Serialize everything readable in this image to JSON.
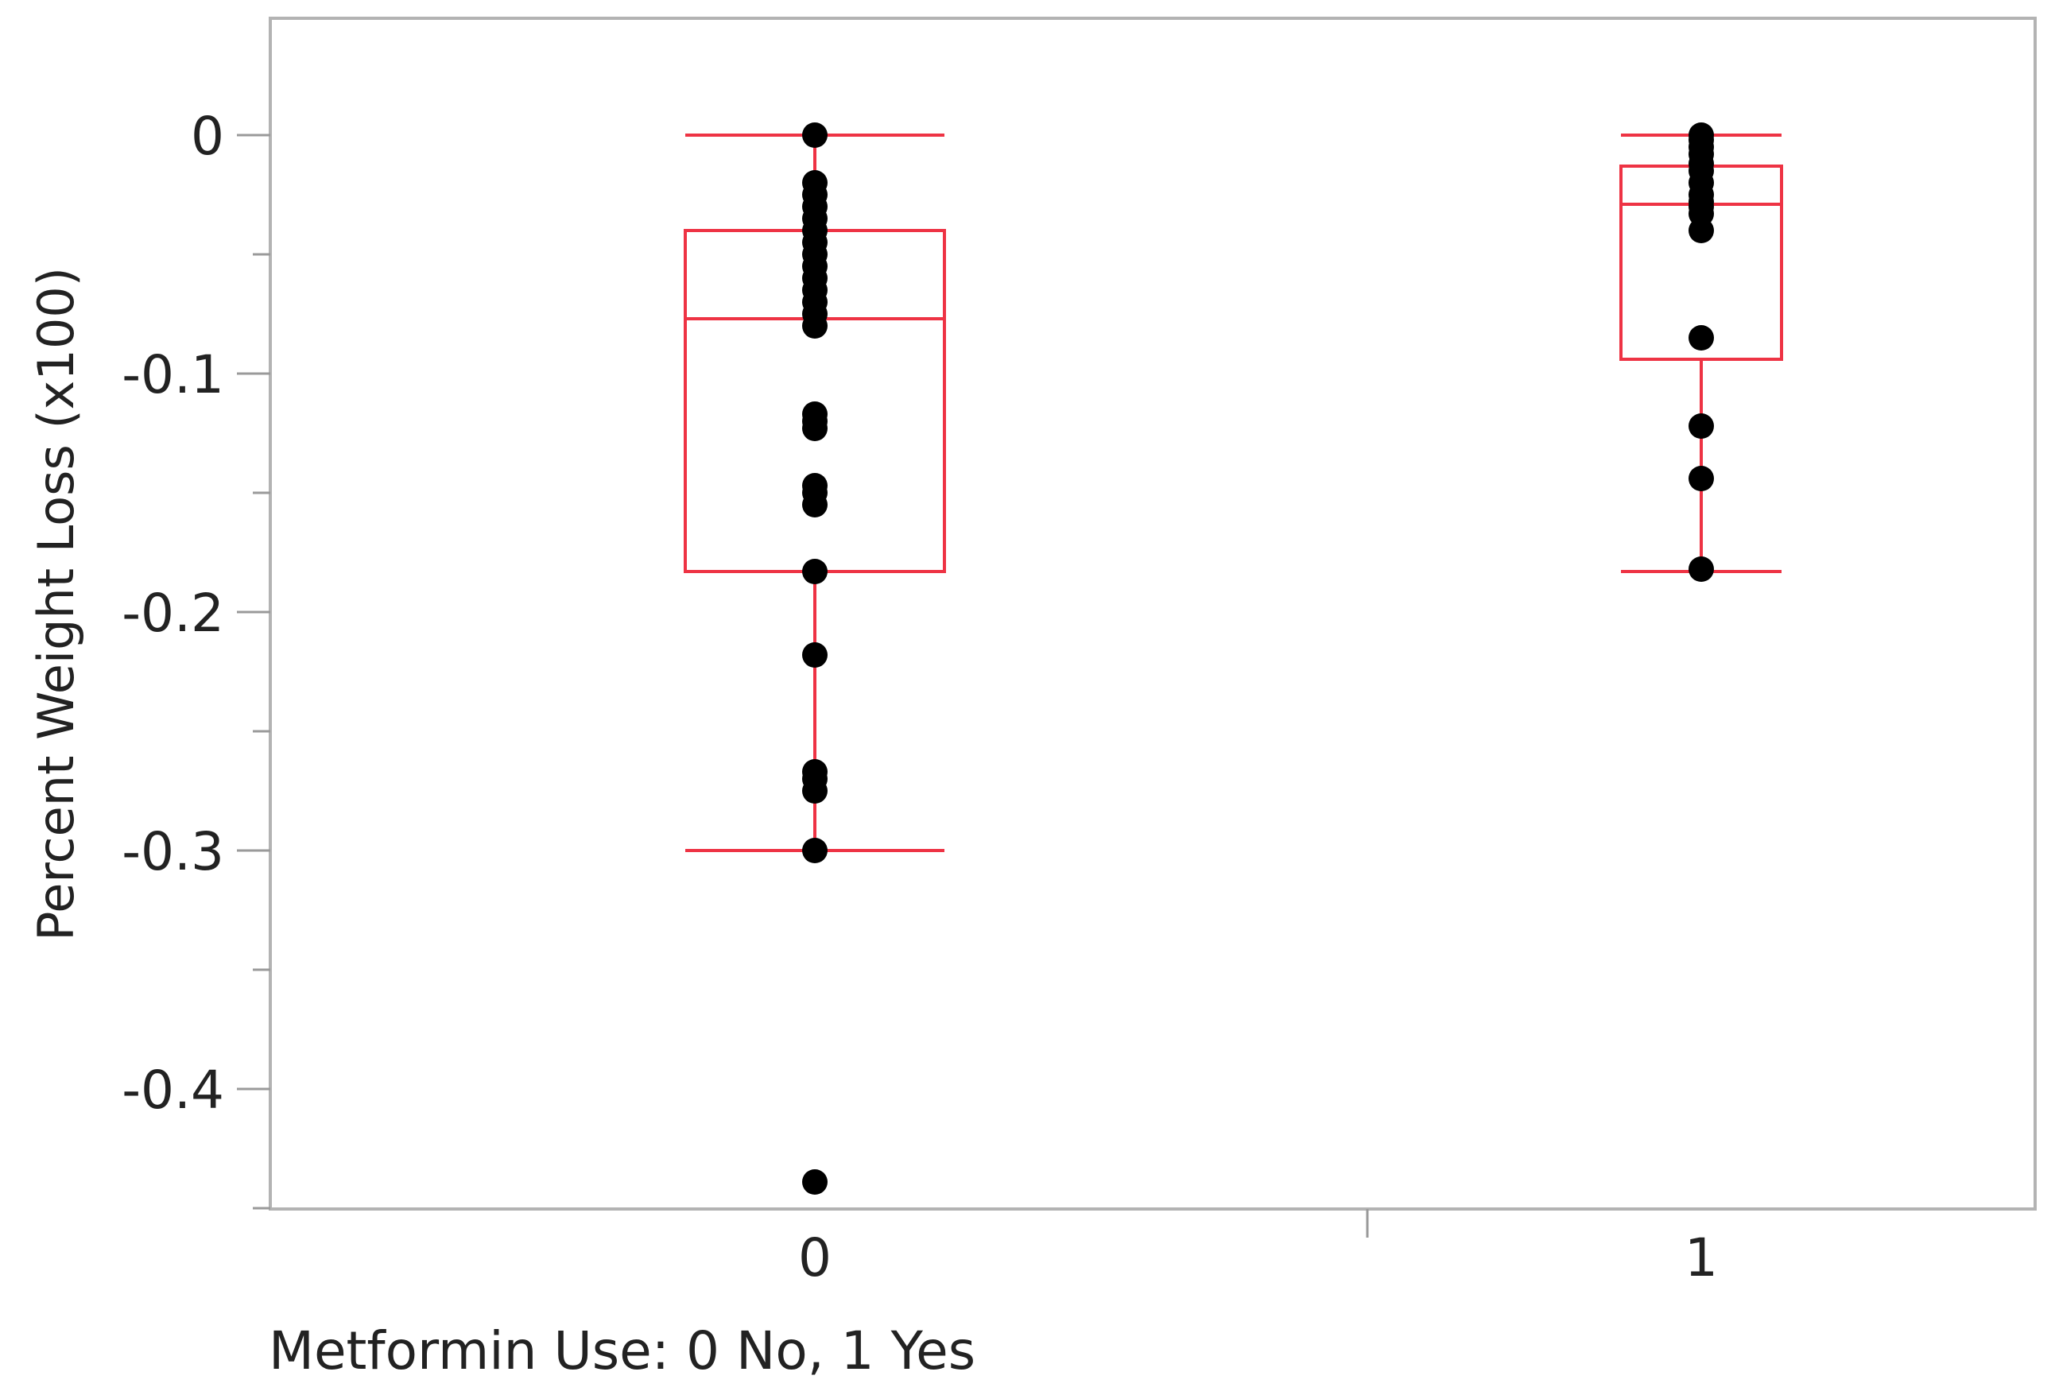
{
  "chart_data": {
    "type": "box",
    "xlabel": "Metformin Use: 0 No, 1 Yes",
    "ylabel": "Percent Weight Loss (x100)",
    "categories": [
      "0",
      "1"
    ],
    "ylim": [
      -0.45,
      0.05
    ],
    "y_ticks": [
      0,
      -0.1,
      -0.2,
      -0.3,
      -0.4
    ],
    "y_tick_labels": [
      "0",
      "-0.1",
      "-0.2",
      "-0.3",
      "-0.4"
    ],
    "grid": false,
    "box_color": "#ee3344",
    "point_color": "#000000",
    "boxes": [
      {
        "category": "0",
        "whisker_high": 0.0,
        "q3": -0.04,
        "median": -0.077,
        "q1": -0.183,
        "whisker_low": -0.3,
        "points": [
          0.0,
          -0.02,
          -0.025,
          -0.03,
          -0.035,
          -0.04,
          -0.045,
          -0.05,
          -0.055,
          -0.06,
          -0.065,
          -0.07,
          -0.075,
          -0.08,
          -0.117,
          -0.12,
          -0.123,
          -0.147,
          -0.15,
          -0.155,
          -0.183,
          -0.218,
          -0.267,
          -0.27,
          -0.275,
          -0.3,
          -0.439
        ]
      },
      {
        "category": "1",
        "whisker_high": 0.0,
        "q3": -0.013,
        "median": -0.029,
        "q1": -0.094,
        "whisker_low": -0.183,
        "points": [
          0.0,
          -0.002,
          -0.005,
          -0.008,
          -0.012,
          -0.015,
          -0.02,
          -0.025,
          -0.028,
          -0.03,
          -0.033,
          -0.04,
          -0.085,
          -0.122,
          -0.144,
          -0.182
        ]
      }
    ]
  }
}
